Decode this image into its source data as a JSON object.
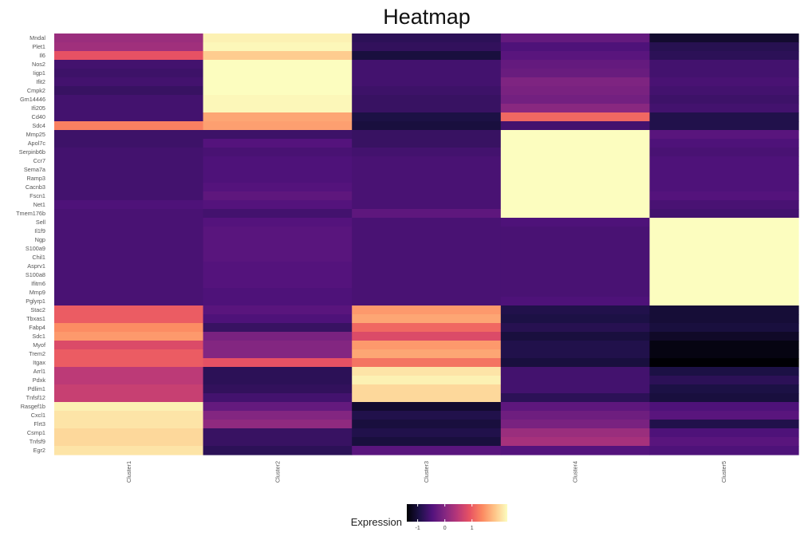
{
  "chart_data": {
    "type": "heatmap",
    "title": "Heatmap",
    "xlabel": "",
    "ylabel": "",
    "columns": [
      "Cluster1",
      "Cluster2",
      "Cluster3",
      "Cluster4",
      "Cluster5"
    ],
    "rows": [
      {
        "gene": "Mndal",
        "values": [
          0.2,
          2.2,
          -0.8,
          -0.3,
          -1.1
        ]
      },
      {
        "gene": "Plet1",
        "values": [
          0.25,
          2.25,
          -0.75,
          -0.5,
          -0.85
        ]
      },
      {
        "gene": "Il6",
        "values": [
          0.9,
          1.9,
          -1.0,
          -0.4,
          -0.8
        ]
      },
      {
        "gene": "Nos2",
        "values": [
          -0.6,
          2.3,
          -0.6,
          -0.3,
          -0.6
        ]
      },
      {
        "gene": "Iigp1",
        "values": [
          -0.65,
          2.3,
          -0.6,
          -0.25,
          -0.6
        ]
      },
      {
        "gene": "Ifit2",
        "values": [
          -0.6,
          2.3,
          -0.6,
          -0.05,
          -0.55
        ]
      },
      {
        "gene": "Cmpk2",
        "values": [
          -0.7,
          2.3,
          -0.65,
          -0.1,
          -0.6
        ]
      },
      {
        "gene": "Gm14446",
        "values": [
          -0.6,
          2.25,
          -0.7,
          -0.15,
          -0.65
        ]
      },
      {
        "gene": "Ifi205",
        "values": [
          -0.6,
          2.25,
          -0.7,
          0.05,
          -0.6
        ]
      },
      {
        "gene": "Cd40",
        "values": [
          -0.6,
          1.6,
          -0.95,
          1.1,
          -0.9
        ]
      },
      {
        "gene": "Sdc4",
        "values": [
          1.3,
          1.55,
          -1.0,
          -0.6,
          -0.9
        ]
      },
      {
        "gene": "Mmp25",
        "values": [
          -0.65,
          -0.65,
          -0.7,
          2.3,
          -0.4
        ]
      },
      {
        "gene": "Apol7c",
        "values": [
          -0.65,
          -0.45,
          -0.7,
          2.3,
          -0.5
        ]
      },
      {
        "gene": "Serpinb6b",
        "values": [
          -0.6,
          -0.55,
          -0.6,
          2.3,
          -0.55
        ]
      },
      {
        "gene": "Ccr7",
        "values": [
          -0.6,
          -0.5,
          -0.55,
          2.3,
          -0.5
        ]
      },
      {
        "gene": "Sema7a",
        "values": [
          -0.6,
          -0.5,
          -0.55,
          2.3,
          -0.5
        ]
      },
      {
        "gene": "Ramp3",
        "values": [
          -0.6,
          -0.5,
          -0.55,
          2.3,
          -0.5
        ]
      },
      {
        "gene": "Cacnb3",
        "values": [
          -0.6,
          -0.45,
          -0.55,
          2.3,
          -0.5
        ]
      },
      {
        "gene": "Fscn1",
        "values": [
          -0.6,
          -0.35,
          -0.55,
          2.3,
          -0.45
        ]
      },
      {
        "gene": "Net1",
        "values": [
          -0.5,
          -0.45,
          -0.55,
          2.3,
          -0.55
        ]
      },
      {
        "gene": "Tmem176b",
        "values": [
          -0.55,
          -0.6,
          -0.35,
          2.3,
          -0.6
        ]
      },
      {
        "gene": "Sell",
        "values": [
          -0.55,
          -0.45,
          -0.55,
          -0.5,
          2.3
        ]
      },
      {
        "gene": "Il1f9",
        "values": [
          -0.55,
          -0.4,
          -0.55,
          -0.55,
          2.3
        ]
      },
      {
        "gene": "Ngp",
        "values": [
          -0.55,
          -0.4,
          -0.55,
          -0.55,
          2.3
        ]
      },
      {
        "gene": "S100a9",
        "values": [
          -0.55,
          -0.4,
          -0.55,
          -0.55,
          2.3
        ]
      },
      {
        "gene": "Chil1",
        "values": [
          -0.55,
          -0.4,
          -0.55,
          -0.55,
          2.3
        ]
      },
      {
        "gene": "Asprv1",
        "values": [
          -0.55,
          -0.45,
          -0.55,
          -0.55,
          2.3
        ]
      },
      {
        "gene": "S100a8",
        "values": [
          -0.55,
          -0.45,
          -0.55,
          -0.55,
          2.3
        ]
      },
      {
        "gene": "Ifitm6",
        "values": [
          -0.55,
          -0.45,
          -0.55,
          -0.55,
          2.3
        ]
      },
      {
        "gene": "Mmp9",
        "values": [
          -0.55,
          -0.5,
          -0.55,
          -0.55,
          2.3
        ]
      },
      {
        "gene": "Pglyrp1",
        "values": [
          -0.55,
          -0.5,
          -0.55,
          -0.5,
          2.3
        ]
      },
      {
        "gene": "Stac2",
        "values": [
          1.0,
          -0.4,
          1.5,
          -0.9,
          -1.05
        ]
      },
      {
        "gene": "Tbxas1",
        "values": [
          1.0,
          -0.5,
          1.6,
          -0.95,
          -1.05
        ]
      },
      {
        "gene": "Fabp4",
        "values": [
          1.4,
          -0.7,
          1.1,
          -0.85,
          -1.0
        ]
      },
      {
        "gene": "Sdc1",
        "values": [
          1.5,
          -0.1,
          0.8,
          -1.0,
          -1.15
        ]
      },
      {
        "gene": "Myof",
        "values": [
          0.8,
          0.0,
          1.5,
          -0.9,
          -1.3
        ]
      },
      {
        "gene": "Trem2",
        "values": [
          1.0,
          0.0,
          1.6,
          -0.9,
          -1.3
        ]
      },
      {
        "gene": "Itgax",
        "values": [
          1.0,
          0.9,
          1.2,
          -1.0,
          -1.4
        ]
      },
      {
        "gene": "Arrl1",
        "values": [
          0.5,
          -0.8,
          2.1,
          -0.6,
          -0.95
        ]
      },
      {
        "gene": "Pdxk",
        "values": [
          0.5,
          -0.8,
          2.2,
          -0.6,
          -0.8
        ]
      },
      {
        "gene": "Pdlim1",
        "values": [
          0.6,
          -0.75,
          2.0,
          -0.6,
          -0.95
        ]
      },
      {
        "gene": "Tnfsf12",
        "values": [
          0.6,
          -0.6,
          2.0,
          -0.8,
          -1.0
        ]
      },
      {
        "gene": "Rasgef1b",
        "values": [
          2.2,
          -0.3,
          -1.1,
          -0.35,
          -0.5
        ]
      },
      {
        "gene": "Cxcl1",
        "values": [
          2.1,
          0.0,
          -0.9,
          -0.2,
          -0.4
        ]
      },
      {
        "gene": "Flrt3",
        "values": [
          2.1,
          0.1,
          -1.0,
          -0.1,
          -0.9
        ]
      },
      {
        "gene": "Csmp1",
        "values": [
          2.0,
          -0.7,
          -0.9,
          0.2,
          -0.5
        ]
      },
      {
        "gene": "Tnfsf9",
        "values": [
          2.0,
          -0.7,
          -1.0,
          0.3,
          -0.4
        ]
      },
      {
        "gene": "Egr2",
        "values": [
          2.1,
          -0.8,
          -0.4,
          -0.45,
          -0.5
        ]
      }
    ],
    "value_range": [
      -1.4,
      2.3
    ],
    "colormap": "magma",
    "colorscale_stops": [
      "#000004",
      "#1d1147",
      "#51127c",
      "#822681",
      "#b73779",
      "#e75263",
      "#fc8961",
      "#fec488",
      "#fcfdbf"
    ],
    "legend": {
      "title": "Expression",
      "ticks": [
        -1,
        0,
        1
      ],
      "tick_labels": [
        "-1",
        "0",
        "1"
      ],
      "position": "bottom"
    },
    "grid": false
  }
}
